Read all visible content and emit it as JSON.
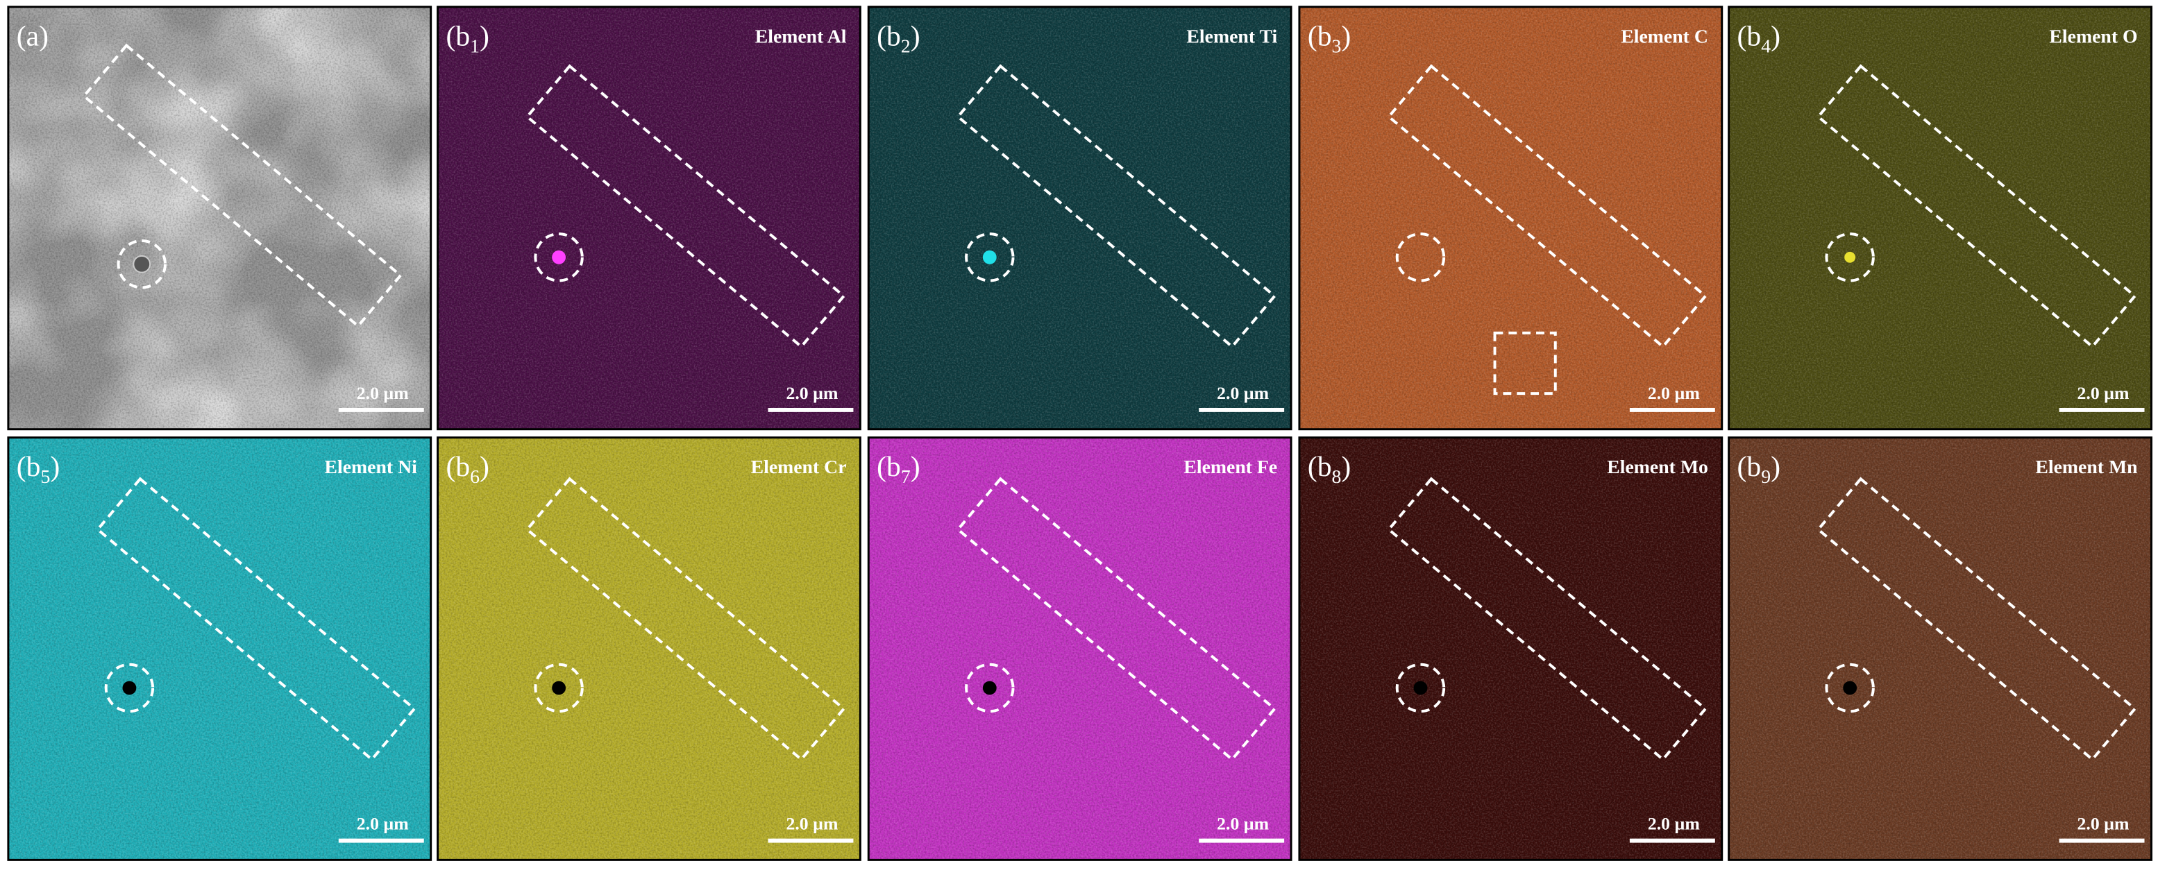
{
  "panels": [
    {
      "label_prefix": "(a",
      "label_sub": null,
      "label_suffix": ")",
      "element": null,
      "scale_bar": "2.0 µm",
      "color": "#8e8e8e"
    },
    {
      "label_prefix": "(b",
      "label_sub": "1",
      "label_suffix": ")",
      "element": "Element Al",
      "scale_bar": "2.0 µm",
      "color": "#4a1046"
    },
    {
      "label_prefix": "(b",
      "label_sub": "2",
      "label_suffix": ")",
      "element": "Element Ti",
      "scale_bar": "2.0 µm",
      "color": "#0f3c40"
    },
    {
      "label_prefix": "(b",
      "label_sub": "3",
      "label_suffix": ")",
      "element": "Element C",
      "scale_bar": "2.0 µm",
      "color": "#b35a2a"
    },
    {
      "label_prefix": "(b",
      "label_sub": "4",
      "label_suffix": ")",
      "element": "Element O",
      "scale_bar": "2.0 µm",
      "color": "#4d4d14"
    },
    {
      "label_prefix": "(b",
      "label_sub": "5",
      "label_suffix": ")",
      "element": "Element Ni",
      "scale_bar": "2.0 µm",
      "color": "#20afb8"
    },
    {
      "label_prefix": "(b",
      "label_sub": "6",
      "label_suffix": ")",
      "element": "Element Cr",
      "scale_bar": "2.0 µm",
      "color": "#b5ad2a"
    },
    {
      "label_prefix": "(b",
      "label_sub": "7",
      "label_suffix": ")",
      "element": "Element Fe",
      "scale_bar": "2.0 µm",
      "color": "#c232c2"
    },
    {
      "label_prefix": "(b",
      "label_sub": "8",
      "label_suffix": ")",
      "element": "Element Mo",
      "scale_bar": "2.0 µm",
      "color": "#3a0d0b"
    },
    {
      "label_prefix": "(b",
      "label_sub": "9",
      "label_suffix": ")",
      "element": "Element Mn",
      "scale_bar": "2.0 µm",
      "color": "#6a3b24"
    }
  ]
}
